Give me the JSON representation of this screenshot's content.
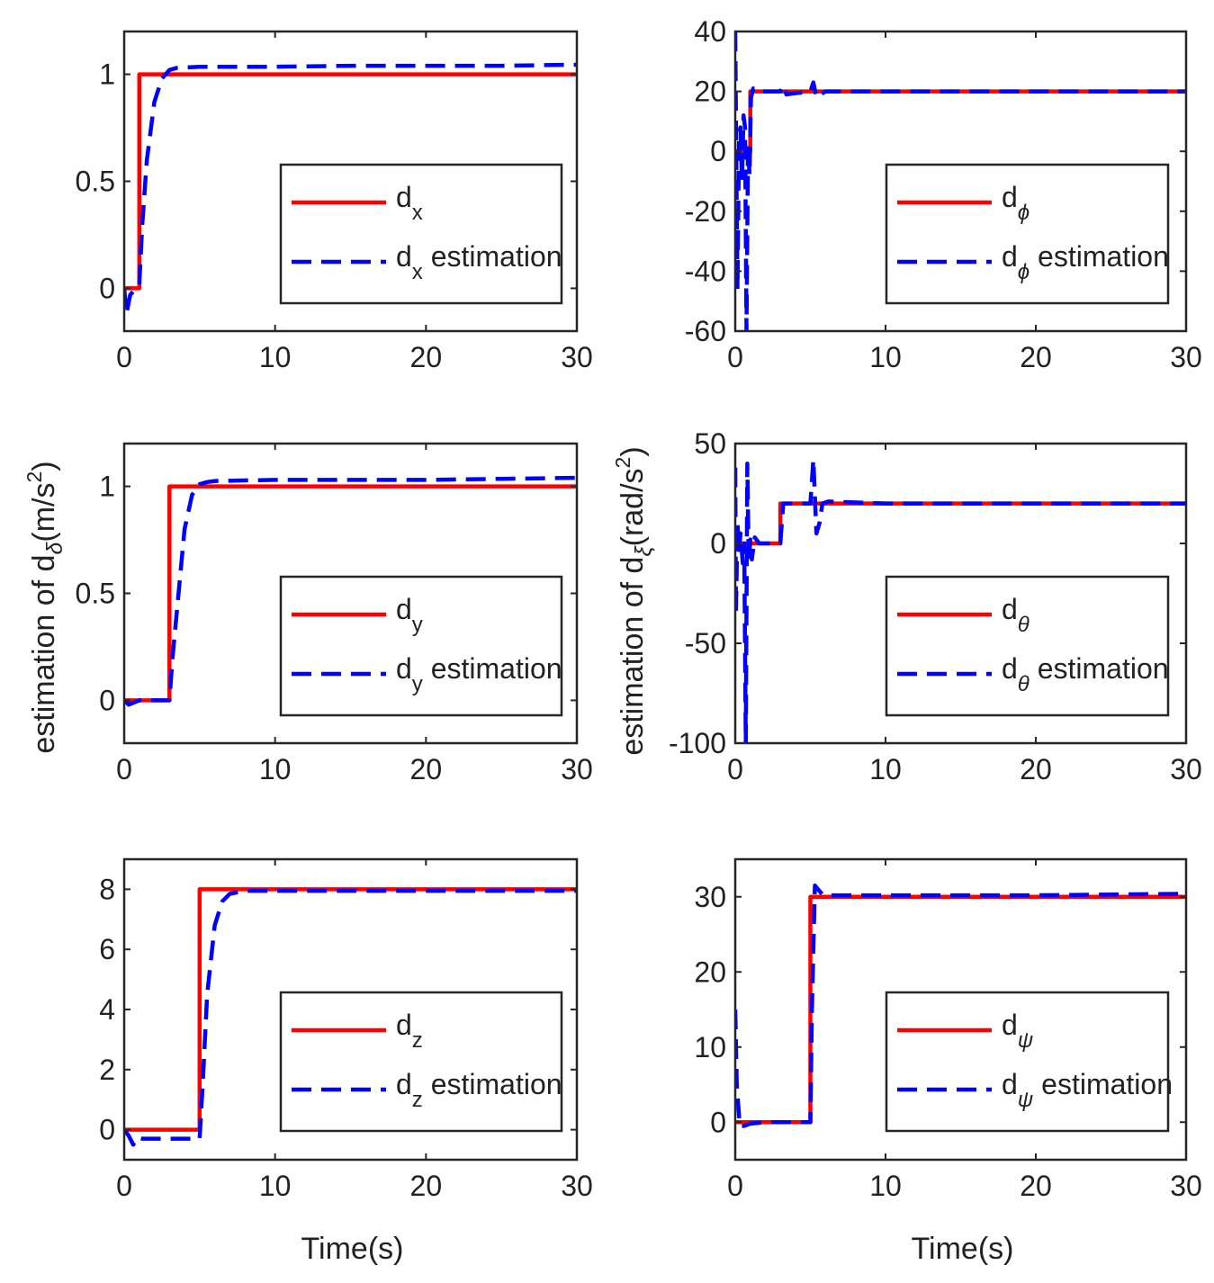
{
  "figure": {
    "left_ylabel": "estimation of d",
    "left_ylabel_sub": "δ",
    "left_ylabel_unit": "(m/s",
    "left_ylabel_sup": "2",
    "left_ylabel_close": ")",
    "right_ylabel": "estimation of d",
    "right_ylabel_sub": "ξ",
    "right_ylabel_unit": "(rad/s",
    "right_ylabel_sup": "2",
    "right_ylabel_close": ")",
    "xlabel": "Time(s)"
  },
  "colors": {
    "actual": "#ff0000",
    "estimate": "#0000ff",
    "axis": "#262626"
  },
  "chart_data": [
    {
      "type": "line",
      "id": "dx",
      "xlim": [
        0,
        30
      ],
      "ylim": [
        -0.2,
        1.2
      ],
      "xticks": [
        0,
        10,
        20,
        30
      ],
      "xtick_labels": [
        "0",
        "10",
        "20",
        "30"
      ],
      "yticks": [
        0,
        0.5,
        1
      ],
      "ytick_labels": [
        "0",
        "0.5",
        "1"
      ],
      "xlabel": "",
      "legend": {
        "position": "center-right",
        "sym": "x",
        "sym_italic": false,
        "labels": [
          "d",
          "d"
        ],
        "suffix": [
          "",
          " estimation"
        ]
      },
      "series": [
        {
          "name": "d_x",
          "style": "solid",
          "color": "#ff0000",
          "x": [
            0,
            1,
            1,
            30
          ],
          "y": [
            0,
            0,
            1,
            1
          ]
        },
        {
          "name": "d_x estimation",
          "style": "dashed",
          "color": "#0000ff",
          "x": [
            0,
            0.15,
            0.4,
            0.8,
            1.0,
            1.2,
            1.5,
            2.0,
            2.5,
            3.0,
            3.5,
            5,
            10,
            15,
            20,
            25,
            30
          ],
          "y": [
            0,
            -0.12,
            -0.03,
            0.0,
            0.02,
            0.3,
            0.6,
            0.87,
            0.98,
            1.02,
            1.03,
            1.035,
            1.035,
            1.04,
            1.04,
            1.04,
            1.045
          ]
        }
      ]
    },
    {
      "type": "line",
      "id": "dphi",
      "xlim": [
        0,
        30
      ],
      "ylim": [
        -60,
        40
      ],
      "xticks": [
        0,
        10,
        20,
        30
      ],
      "xtick_labels": [
        "0",
        "10",
        "20",
        "30"
      ],
      "yticks": [
        -60,
        -40,
        -20,
        0,
        20,
        40
      ],
      "ytick_labels": [
        "-60",
        "-40",
        "-20",
        "0",
        "20",
        "40"
      ],
      "xlabel": "",
      "legend": {
        "position": "center-right",
        "sym": "ϕ",
        "sym_italic": true,
        "labels": [
          "d",
          "d"
        ],
        "suffix": [
          "",
          " estimation"
        ]
      },
      "series": [
        {
          "name": "d_phi",
          "style": "solid",
          "color": "#ff0000",
          "x": [
            0,
            1,
            1,
            30
          ],
          "y": [
            0,
            0,
            20,
            20
          ]
        },
        {
          "name": "d_phi estimation",
          "style": "dashed",
          "color": "#0000ff",
          "x": [
            0,
            0.05,
            0.15,
            0.25,
            0.35,
            0.45,
            0.55,
            0.65,
            0.75,
            0.85,
            0.95,
            1.05,
            1.2,
            1.5,
            2.0,
            3.0,
            3.2,
            3.4,
            5.0,
            5.2,
            5.4,
            6,
            10,
            15,
            20,
            25,
            30
          ],
          "y": [
            40,
            10,
            -46,
            5,
            8,
            -10,
            12,
            8,
            -60,
            2,
            -8,
            18,
            21,
            20,
            20,
            20,
            22,
            19,
            20,
            23,
            18,
            20,
            20,
            20,
            20,
            20,
            20
          ]
        }
      ]
    },
    {
      "type": "line",
      "id": "dy",
      "xlim": [
        0,
        30
      ],
      "ylim": [
        -0.2,
        1.2
      ],
      "xticks": [
        0,
        10,
        20,
        30
      ],
      "xtick_labels": [
        "0",
        "10",
        "20",
        "30"
      ],
      "yticks": [
        0,
        0.5,
        1
      ],
      "ytick_labels": [
        "0",
        "0.5",
        "1"
      ],
      "xlabel": "",
      "legend": {
        "position": "center-right",
        "sym": "y",
        "sym_italic": false,
        "labels": [
          "d",
          "d"
        ],
        "suffix": [
          "",
          " estimation"
        ]
      },
      "series": [
        {
          "name": "d_y",
          "style": "solid",
          "color": "#ff0000",
          "x": [
            0,
            3,
            3,
            30
          ],
          "y": [
            0,
            0,
            1,
            1
          ]
        },
        {
          "name": "d_y estimation",
          "style": "dashed",
          "color": "#0000ff",
          "x": [
            0,
            0.3,
            1,
            2,
            3.0,
            3.2,
            3.6,
            4.0,
            4.5,
            5.0,
            5.5,
            6,
            10,
            15,
            20,
            25,
            30
          ],
          "y": [
            0,
            -0.02,
            0,
            0,
            0.0,
            0.2,
            0.5,
            0.8,
            0.96,
            1.01,
            1.02,
            1.025,
            1.03,
            1.03,
            1.03,
            1.035,
            1.04
          ]
        }
      ]
    },
    {
      "type": "line",
      "id": "dtheta",
      "xlim": [
        0,
        30
      ],
      "ylim": [
        -100,
        50
      ],
      "xticks": [
        0,
        10,
        20,
        30
      ],
      "xtick_labels": [
        "0",
        "10",
        "20",
        "30"
      ],
      "yticks": [
        -100,
        -50,
        0,
        50
      ],
      "ytick_labels": [
        "-100",
        "-50",
        "0",
        "50"
      ],
      "xlabel": "",
      "legend": {
        "position": "center-right",
        "sym": "θ",
        "sym_italic": true,
        "labels": [
          "d",
          "d"
        ],
        "suffix": [
          "",
          " estimation"
        ]
      },
      "series": [
        {
          "name": "d_theta",
          "style": "solid",
          "color": "#ff0000",
          "x": [
            0,
            3,
            3,
            30
          ],
          "y": [
            0,
            0,
            20,
            20
          ]
        },
        {
          "name": "d_theta estimation",
          "style": "dashed",
          "color": "#0000ff",
          "x": [
            0,
            0.05,
            0.15,
            0.25,
            0.35,
            0.5,
            0.6,
            0.7,
            0.8,
            0.9,
            1.0,
            1.1,
            1.3,
            1.6,
            2.0,
            2.5,
            3.0,
            3.2,
            3.5,
            5.0,
            5.2,
            5.4,
            5.6,
            5.8,
            6.2,
            10,
            15,
            20,
            25,
            30
          ],
          "y": [
            38,
            -35,
            10,
            -5,
            5,
            -10,
            0,
            -100,
            40,
            -10,
            2,
            -8,
            3,
            0,
            0,
            0,
            0,
            20,
            20,
            20,
            42,
            5,
            10,
            20,
            21,
            20,
            20,
            20,
            20,
            20
          ]
        }
      ]
    },
    {
      "type": "line",
      "id": "dz",
      "xlim": [
        0,
        30
      ],
      "ylim": [
        -1,
        9
      ],
      "xticks": [
        0,
        10,
        20,
        30
      ],
      "xtick_labels": [
        "0",
        "10",
        "20",
        "30"
      ],
      "yticks": [
        0,
        2,
        4,
        6,
        8
      ],
      "ytick_labels": [
        "0",
        "2",
        "4",
        "6",
        "8"
      ],
      "xlabel": "Time(s)",
      "legend": {
        "position": "center-right",
        "sym": "z",
        "sym_italic": false,
        "labels": [
          "d",
          "d"
        ],
        "suffix": [
          "",
          " estimation"
        ]
      },
      "series": [
        {
          "name": "d_z",
          "style": "solid",
          "color": "#ff0000",
          "x": [
            0,
            5,
            5,
            30
          ],
          "y": [
            0,
            0,
            8,
            8
          ]
        },
        {
          "name": "d_z estimation",
          "style": "dashed",
          "color": "#0000ff",
          "x": [
            0,
            0.3,
            0.6,
            0.9,
            1.2,
            2,
            3,
            5.0,
            5.2,
            5.5,
            6.0,
            6.5,
            7.0,
            8.0,
            9.0,
            10,
            15,
            20,
            25,
            30
          ],
          "y": [
            0,
            -0.2,
            -0.5,
            -0.25,
            -0.3,
            -0.3,
            -0.3,
            -0.3,
            1.5,
            4.5,
            6.8,
            7.6,
            7.85,
            7.95,
            7.95,
            7.95,
            7.95,
            7.95,
            7.95,
            7.95
          ]
        }
      ]
    },
    {
      "type": "line",
      "id": "dpsi",
      "xlim": [
        0,
        30
      ],
      "ylim": [
        -5,
        35
      ],
      "xticks": [
        0,
        10,
        20,
        30
      ],
      "xtick_labels": [
        "0",
        "10",
        "20",
        "30"
      ],
      "yticks": [
        0,
        10,
        20,
        30
      ],
      "ytick_labels": [
        "0",
        "10",
        "20",
        "30"
      ],
      "xlabel": "Time(s)",
      "legend": {
        "position": "center-right",
        "sym": "ψ",
        "sym_italic": true,
        "labels": [
          "d",
          "d"
        ],
        "suffix": [
          "",
          " estimation"
        ]
      },
      "series": [
        {
          "name": "d_psi",
          "style": "solid",
          "color": "#ff0000",
          "x": [
            0,
            5,
            5,
            30
          ],
          "y": [
            0,
            0,
            30,
            30
          ]
        },
        {
          "name": "d_psi estimation",
          "style": "dashed",
          "color": "#0000ff",
          "x": [
            0,
            0.1,
            0.3,
            0.6,
            1.0,
            2.0,
            3.0,
            5.0,
            5.1,
            5.3,
            5.5,
            5.8,
            6.2,
            7,
            10,
            15,
            20,
            25,
            30
          ],
          "y": [
            15,
            5,
            -0.5,
            -0.5,
            -0.2,
            0,
            0,
            0,
            15,
            31.5,
            31,
            30.3,
            30.2,
            30.2,
            30.2,
            30.2,
            30.2,
            30.3,
            30.4
          ]
        }
      ]
    }
  ]
}
